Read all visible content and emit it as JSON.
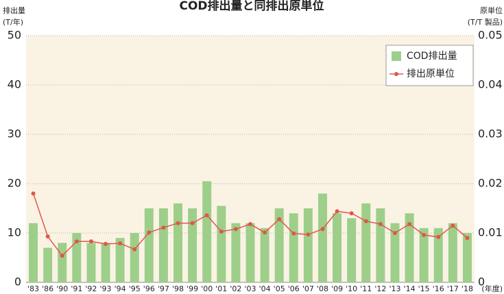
{
  "chart_data": {
    "type": "bar+line",
    "title": "COD排出量と同排出原単位",
    "ylabel": [
      "排出量",
      "(T/年)"
    ],
    "y2label": [
      "原単位",
      "(T/T 製品)"
    ],
    "xunit": "(年度)",
    "categories": [
      "'83",
      "'86",
      "'90",
      "'91",
      "'92",
      "'93",
      "'94",
      "'95",
      "'96",
      "'97",
      "'98",
      "'99",
      "'00",
      "'01",
      "'02",
      "'03",
      "'04",
      "'05",
      "'06",
      "'07",
      "'08",
      "'09",
      "'10",
      "'11",
      "'12",
      "'13",
      "'14",
      "'15",
      "'16",
      "'17",
      "'18"
    ],
    "series": [
      {
        "name": "COD排出量",
        "type": "bar",
        "color": "#9dcf8a",
        "values": [
          12,
          7,
          8,
          10,
          8,
          8,
          9,
          10,
          15,
          15,
          16,
          15,
          20.5,
          15.5,
          12,
          12,
          11,
          15,
          14,
          15,
          18,
          14,
          13,
          16,
          15,
          12,
          14,
          11,
          11,
          12,
          10
        ]
      },
      {
        "name": "排出原単位",
        "type": "line",
        "color": "#e0574a",
        "axis": "y2",
        "values": [
          0.018,
          0.0093,
          0.0054,
          0.0083,
          0.0083,
          0.0078,
          0.0079,
          0.0067,
          0.0101,
          0.0111,
          0.012,
          0.012,
          0.0136,
          0.0103,
          0.0108,
          0.0118,
          0.0101,
          0.0128,
          0.0099,
          0.0097,
          0.0108,
          0.0144,
          0.014,
          0.0124,
          0.0118,
          0.01,
          0.0118,
          0.0096,
          0.0092,
          0.0115,
          0.009
        ]
      }
    ],
    "ylim": [
      0,
      50
    ],
    "yticks": [
      0,
      10,
      20,
      30,
      40,
      50
    ],
    "y2lim": [
      0,
      0.05
    ],
    "y2ticks": [
      0,
      0.01,
      0.02,
      0.03,
      0.04,
      0.05
    ],
    "grid": true,
    "legend": "top-right"
  }
}
